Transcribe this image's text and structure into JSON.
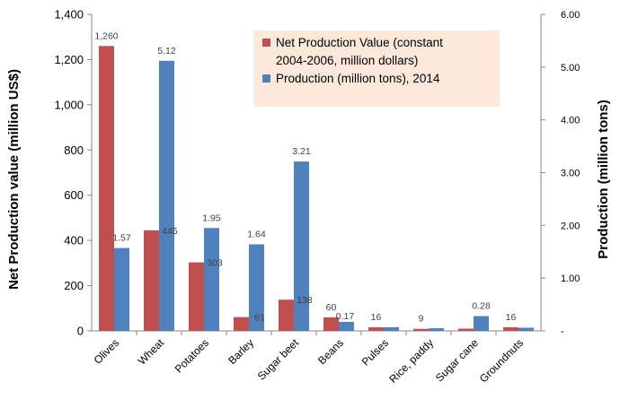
{
  "chart_data": {
    "type": "bar",
    "categories": [
      "Olives",
      "Wheat",
      "Potatoes",
      "Barley",
      "Sugar beet",
      "Beans",
      "Pulses",
      "Rice, paddy",
      "Sugar cane",
      "Groundnuts"
    ],
    "series": [
      {
        "name": "Net Production Value (constant 2004-2006, million dollars)",
        "axis": "left",
        "color": "#c0504d",
        "values": [
          1260,
          445,
          303,
          61,
          138,
          60,
          16,
          9,
          10,
          16
        ],
        "labels": [
          "1,260",
          "445",
          "303",
          "61",
          "138",
          "60",
          "16",
          "9",
          "",
          "16"
        ]
      },
      {
        "name": "Production (million tons), 2014",
        "axis": "right",
        "color": "#4f81bd",
        "values": [
          1.57,
          5.12,
          1.95,
          1.64,
          3.21,
          0.17,
          0.07,
          0.05,
          0.28,
          0.06
        ],
        "labels": [
          "1.57",
          "5.12",
          "1.95",
          "1.64",
          "3.21",
          "0.17",
          "",
          "",
          "0.28",
          ""
        ]
      }
    ],
    "legend": {
      "placement": "top-right",
      "entries": [
        {
          "lines": [
            "Net Production Value (constant",
            "2004-2006, million dollars)"
          ],
          "color": "#c0504d"
        },
        {
          "lines": [
            "Production (million tons), 2014"
          ],
          "color": "#4f81bd"
        }
      ],
      "background": "#fde9d9"
    },
    "ylabel": "Net Production value (million US$)",
    "y2label": "Production (million tons)",
    "ylim": [
      0,
      1400
    ],
    "y2lim": [
      0,
      6
    ],
    "yticks": [
      0,
      200,
      400,
      600,
      800,
      1000,
      1200,
      1400
    ],
    "yticklabels": [
      "0",
      "200",
      "400",
      "600",
      "800",
      "1,000",
      "1,200",
      "1,400"
    ],
    "y2ticks": [
      0,
      1,
      2,
      3,
      4,
      5,
      6
    ],
    "y2ticklabels": [
      "-",
      "1.00",
      "2.00",
      "3.00",
      "4.00",
      "5.00",
      "6.00"
    ],
    "grid": false
  }
}
